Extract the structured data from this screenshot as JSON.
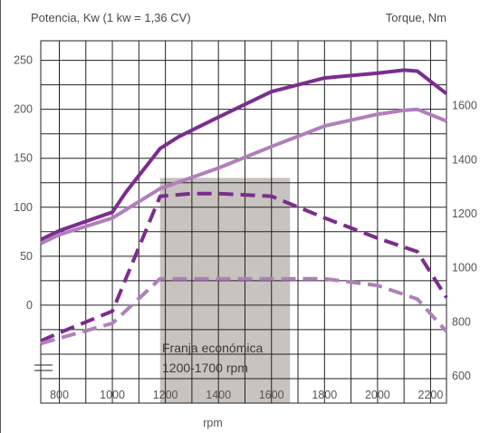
{
  "chart_data": {
    "type": "line",
    "title_left": "Potencia, Kw (1 kw = 1,36 CV)",
    "title_right": "Torque, Nm",
    "xlabel": "rpm",
    "x_ticks": [
      800,
      1000,
      1200,
      1400,
      1600,
      1800,
      2000,
      2200
    ],
    "xlim": [
      730,
      2260
    ],
    "y_left_ticks": [
      250,
      200,
      150,
      100,
      50,
      0
    ],
    "y_left_lim": [
      -100,
      270
    ],
    "y_right_ticks": [
      1600,
      1400,
      1200,
      1000,
      800,
      600
    ],
    "y_right_lim": [
      500,
      1840
    ],
    "grid": true,
    "band": {
      "x_range": [
        1180,
        1670
      ],
      "label_line1": "Franja económica",
      "label_line2": "1200-1700 rpm",
      "color": "#c9c3bf"
    },
    "series": [
      {
        "axis": "left",
        "style": "solid",
        "color": "#7b2d8e",
        "x": [
          730,
          800,
          1000,
          1050,
          1180,
          1250,
          1400,
          1600,
          1800,
          2000,
          2100,
          2150,
          2260
        ],
        "values": [
          67,
          76,
          95,
          115,
          160,
          172,
          192,
          218,
          232,
          237,
          240,
          239,
          216
        ]
      },
      {
        "axis": "left",
        "style": "solid",
        "color": "#b07fbc",
        "x": [
          730,
          800,
          1000,
          1180,
          1400,
          1600,
          1800,
          2000,
          2100,
          2150,
          2260
        ],
        "values": [
          63,
          72,
          89,
          119,
          140,
          162,
          183,
          195,
          199,
          200,
          188
        ]
      },
      {
        "axis": "right",
        "style": "dashed",
        "color": "#7b2d8e",
        "x": [
          730,
          800,
          1000,
          1180,
          1300,
          1400,
          1600,
          1800,
          2000,
          2150,
          2260
        ],
        "values": [
          730,
          760,
          840,
          1265,
          1275,
          1275,
          1265,
          1185,
          1110,
          1060,
          890
        ]
      },
      {
        "axis": "right",
        "style": "dashed",
        "color": "#b07fbc",
        "x": [
          730,
          800,
          1000,
          1180,
          1400,
          1600,
          1800,
          2000,
          2150,
          2260
        ],
        "values": [
          720,
          740,
          795,
          960,
          960,
          960,
          960,
          935,
          885,
          765
        ]
      }
    ]
  }
}
